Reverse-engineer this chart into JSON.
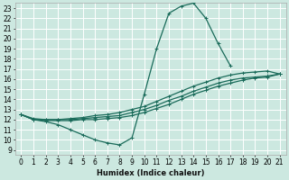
{
  "title": "",
  "xlabel": "Humidex (Indice chaleur)",
  "bg_color": "#cce8e0",
  "grid_color": "#ffffff",
  "line_color": "#1a6b5a",
  "xlim": [
    -0.5,
    21.5
  ],
  "ylim": [
    8.5,
    23.5
  ],
  "xticks": [
    0,
    1,
    2,
    3,
    4,
    5,
    6,
    7,
    8,
    9,
    10,
    11,
    12,
    13,
    14,
    15,
    16,
    17,
    18,
    19,
    20,
    21
  ],
  "yticks": [
    9,
    10,
    11,
    12,
    13,
    14,
    15,
    16,
    17,
    18,
    19,
    20,
    21,
    22,
    23
  ],
  "curves": [
    {
      "x": [
        0,
        1,
        2,
        3,
        4,
        5,
        6,
        7,
        8,
        9,
        10,
        11,
        12,
        13,
        14,
        15,
        16,
        17
      ],
      "y": [
        12.5,
        12.0,
        11.8,
        11.5,
        11.0,
        10.5,
        10.0,
        9.7,
        9.5,
        10.2,
        14.5,
        19.0,
        22.5,
        23.2,
        23.5,
        22.0,
        19.5,
        17.3
      ]
    },
    {
      "x": [
        0,
        1,
        2,
        3,
        4,
        5,
        6,
        7,
        8,
        9,
        10,
        11,
        12,
        13,
        14,
        15,
        16,
        17,
        18,
        19,
        20,
        21
      ],
      "y": [
        12.5,
        12.1,
        12.0,
        12.0,
        12.1,
        12.2,
        12.4,
        12.5,
        12.7,
        13.0,
        13.3,
        13.8,
        14.3,
        14.8,
        15.3,
        15.7,
        16.1,
        16.4,
        16.6,
        16.7,
        16.8,
        16.5
      ]
    },
    {
      "x": [
        0,
        1,
        2,
        3,
        4,
        5,
        6,
        7,
        8,
        9,
        10,
        11,
        12,
        13,
        14,
        15,
        16,
        17,
        18,
        19,
        20,
        21
      ],
      "y": [
        12.5,
        12.0,
        12.0,
        12.0,
        12.0,
        12.1,
        12.2,
        12.3,
        12.4,
        12.7,
        13.0,
        13.4,
        13.9,
        14.3,
        14.8,
        15.2,
        15.6,
        15.9,
        16.1,
        16.2,
        16.3,
        16.5
      ]
    },
    {
      "x": [
        0,
        1,
        2,
        3,
        4,
        5,
        6,
        7,
        8,
        9,
        10,
        11,
        12,
        13,
        14,
        15,
        16,
        17,
        18,
        19,
        20,
        21
      ],
      "y": [
        12.5,
        12.0,
        11.9,
        11.9,
        11.9,
        12.0,
        12.0,
        12.1,
        12.2,
        12.4,
        12.7,
        13.1,
        13.5,
        14.0,
        14.5,
        14.9,
        15.3,
        15.6,
        15.9,
        16.1,
        16.2,
        16.5
      ]
    }
  ],
  "tick_fontsize": 5.5,
  "xlabel_fontsize": 6,
  "xlabel_fontweight": "bold",
  "linewidth": 0.9,
  "markersize": 2.5
}
